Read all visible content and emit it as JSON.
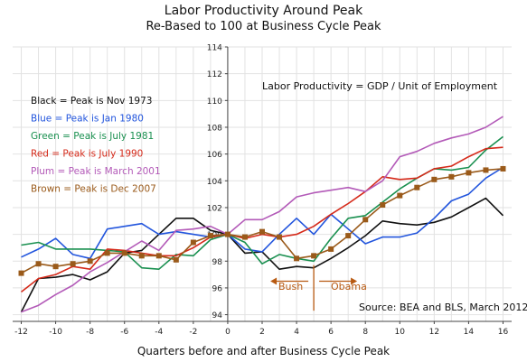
{
  "chart_data": {
    "type": "line",
    "title": "Labor Productivity Around Peak",
    "subtitle": "Re-Based to 100 at Business Cycle Peak",
    "xlabel": "Quarters before and after Business Cycle Peak",
    "ylabel": "",
    "xlim": [
      -12.5,
      16.5
    ],
    "ylim": [
      93.5,
      114
    ],
    "x_ticks": [
      -12,
      -10,
      -8,
      -6,
      -4,
      -2,
      0,
      2,
      4,
      6,
      8,
      10,
      12,
      14,
      16
    ],
    "y_ticks": [
      94,
      96,
      98,
      100,
      102,
      104,
      106,
      108,
      110,
      112,
      114
    ],
    "grid": true,
    "x": [
      -12,
      -11,
      -10,
      -9,
      -8,
      -7,
      -6,
      -5,
      -4,
      -3,
      -2,
      -1,
      0,
      1,
      2,
      3,
      4,
      5,
      6,
      7,
      8,
      9,
      10,
      11,
      12,
      13,
      14,
      15,
      16
    ],
    "series": [
      {
        "name": "Black = Peak is Nov 1973",
        "color": "#111111",
        "marker": "none",
        "values": [
          94.2,
          96.7,
          96.8,
          97.0,
          96.6,
          97.2,
          98.6,
          98.8,
          100.0,
          101.2,
          101.2,
          100.3,
          100.0,
          98.6,
          98.7,
          97.4,
          97.6,
          97.5,
          98.2,
          99.0,
          99.9,
          101.0,
          100.8,
          100.7,
          100.9,
          101.3,
          102.0,
          102.7,
          101.4
        ]
      },
      {
        "name": "Blue = Peak is Jan 1980",
        "color": "#2255dd",
        "marker": "none",
        "values": [
          98.3,
          98.9,
          99.7,
          98.5,
          98.2,
          100.4,
          100.6,
          100.8,
          100.0,
          100.2,
          100.0,
          99.8,
          100.0,
          98.9,
          98.7,
          100.0,
          101.2,
          100.0,
          101.5,
          100.4,
          99.3,
          99.8,
          99.8,
          100.1,
          101.2,
          102.5,
          103.0,
          104.2,
          105.0
        ]
      },
      {
        "name": "Green = Peak is July 1981",
        "color": "#1a9050",
        "marker": "none",
        "values": [
          99.2,
          99.4,
          98.9,
          98.9,
          98.9,
          98.8,
          98.7,
          97.5,
          97.4,
          98.5,
          98.4,
          99.6,
          100.0,
          99.4,
          97.8,
          98.5,
          98.2,
          98.0,
          99.7,
          101.2,
          101.4,
          102.4,
          103.4,
          104.2,
          104.9,
          104.8,
          105.0,
          106.3,
          107.3
        ]
      },
      {
        "name": "Red = Peak is July 1990",
        "color": "#d52a1a",
        "marker": "none",
        "values": [
          95.7,
          96.7,
          97.0,
          97.6,
          97.4,
          98.9,
          98.8,
          98.6,
          98.4,
          98.4,
          99.0,
          99.8,
          100.0,
          99.7,
          100.0,
          99.8,
          100.0,
          100.6,
          101.5,
          102.3,
          103.2,
          104.3,
          104.1,
          104.2,
          104.9,
          105.1,
          105.8,
          106.4,
          106.5
        ]
      },
      {
        "name": "Plum = Peak is March 2001",
        "color": "#b35ab8",
        "marker": "none",
        "values": [
          94.2,
          94.7,
          95.5,
          96.2,
          97.2,
          97.9,
          98.7,
          99.5,
          98.8,
          100.3,
          100.4,
          100.6,
          100.0,
          101.1,
          101.1,
          101.7,
          102.8,
          103.1,
          103.3,
          103.5,
          103.2,
          104.0,
          105.8,
          106.2,
          106.8,
          107.2,
          107.5,
          108.0,
          108.8
        ]
      },
      {
        "name": "Brown = Peak is Dec 2007",
        "color": "#9a5a1a",
        "marker": "square",
        "values": [
          97.1,
          97.8,
          97.6,
          97.8,
          98.0,
          98.6,
          98.6,
          98.4,
          98.4,
          98.1,
          99.4,
          99.9,
          100.0,
          99.8,
          100.2,
          99.8,
          98.2,
          98.4,
          98.9,
          99.9,
          101.1,
          102.2,
          102.9,
          103.5,
          104.1,
          104.3,
          104.6,
          104.8,
          104.9
        ]
      }
    ],
    "annotations": {
      "formula": "Labor Productivity = GDP / Unit of Employment",
      "bush": "Bush",
      "obama": "Obama",
      "source": "Source:  BEA and BLS, March 2012",
      "divider_x": 5
    },
    "legend_placement": "top-left"
  },
  "colors": {
    "grid": "#e2e2e2",
    "axis": "#444444",
    "annotation": "#b85a12"
  }
}
